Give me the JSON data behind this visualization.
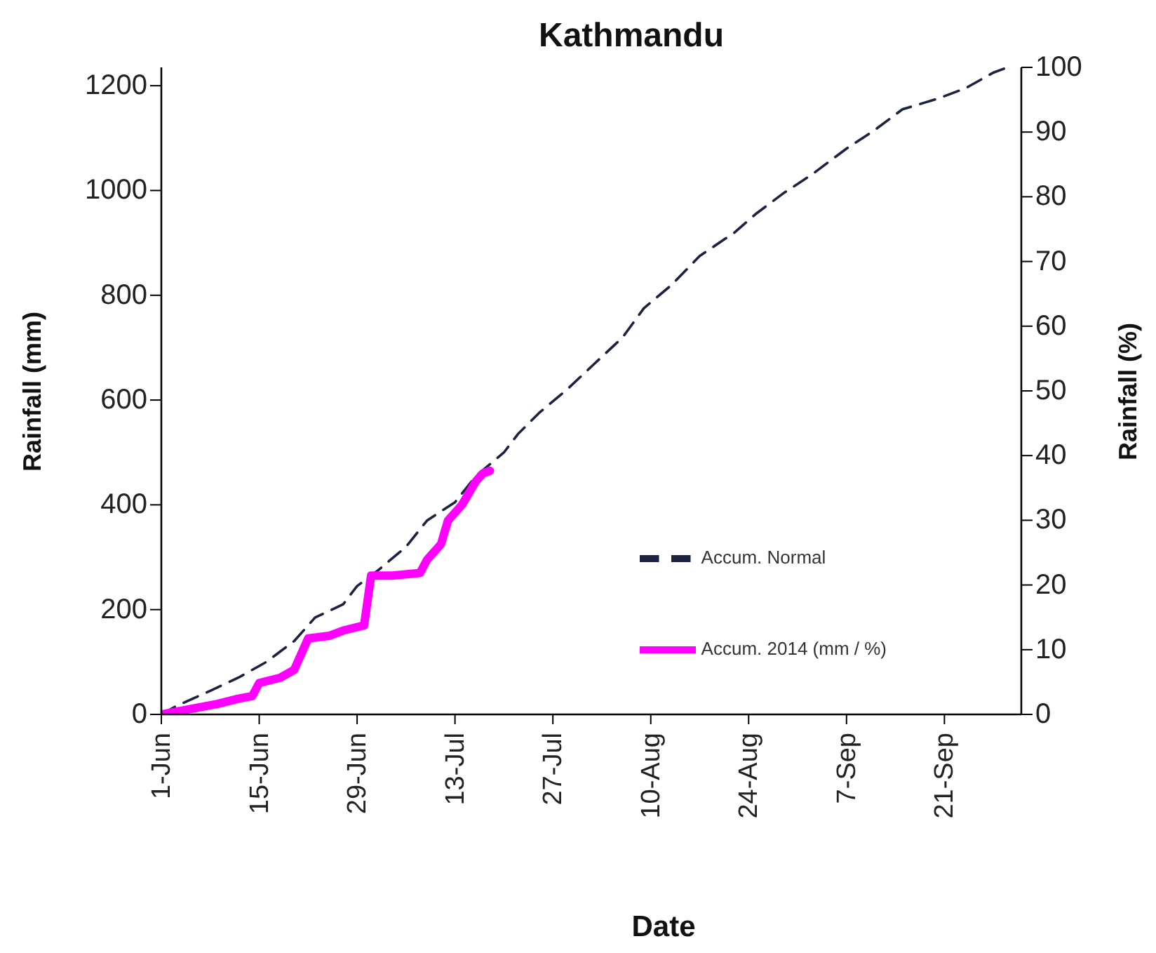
{
  "chart_data": {
    "type": "line",
    "title": "Kathmandu",
    "xlabel": "Date",
    "ylabel": "Rainfall (mm)",
    "y2label": "Rainfall (%)",
    "xlim": [
      "--06-01",
      "--10-02"
    ],
    "xticks": [
      {
        "value": "--06-01",
        "label": "1-Jun"
      },
      {
        "value": "--06-15",
        "label": "15-Jun"
      },
      {
        "value": "--06-29",
        "label": "29-Jun"
      },
      {
        "value": "--07-13",
        "label": "13-Jul"
      },
      {
        "value": "--07-27",
        "label": "27-Jul"
      },
      {
        "value": "--08-10",
        "label": "10-Aug"
      },
      {
        "value": "--08-24",
        "label": "24-Aug"
      },
      {
        "value": "--09-07",
        "label": "7-Sep"
      },
      {
        "value": "--09-21",
        "label": "21-Sep"
      }
    ],
    "ylim": [
      0,
      1235
    ],
    "yticks": [
      0,
      200,
      400,
      600,
      800,
      1000,
      1200
    ],
    "y2lim": [
      0,
      100
    ],
    "y2ticks": [
      0,
      10,
      20,
      30,
      40,
      50,
      60,
      70,
      80,
      90,
      100
    ],
    "legend": "bottom right",
    "marker": "none",
    "series": [
      {
        "name": "Accum. Normal",
        "color": "#1c2340",
        "line_style": "dashed",
        "x": [
          "--06-01",
          "--06-03",
          "--06-08",
          "--06-12",
          "--06-16",
          "--06-20",
          "--06-23",
          "--06-27",
          "--06-29",
          "--07-02",
          "--07-06",
          "--07-09",
          "--07-13",
          "--07-16",
          "--07-20",
          "--07-22",
          "--07-25",
          "--07-29",
          "--08-02",
          "--08-06",
          "--08-09",
          "--08-13",
          "--08-17",
          "--08-22",
          "--08-25",
          "--08-29",
          "--09-02",
          "--09-07",
          "--09-11",
          "--09-15",
          "--09-20",
          "--09-24",
          "--09-28",
          "--09-30"
        ],
        "values": [
          0,
          15,
          45,
          70,
          100,
          140,
          185,
          210,
          245,
          275,
          320,
          370,
          405,
          455,
          500,
          535,
          575,
          620,
          670,
          720,
          775,
          820,
          875,
          920,
          955,
          995,
          1030,
          1080,
          1115,
          1155,
          1175,
          1195,
          1225,
          1235
        ]
      },
      {
        "name": "Accum. 2014 (mm / %)",
        "color": "#ff00ff",
        "line_style": "solid",
        "x": [
          "--06-01",
          "--06-05",
          "--06-09",
          "--06-12",
          "--06-14",
          "--06-15",
          "--06-18",
          "--06-20",
          "--06-22",
          "--06-25",
          "--06-27",
          "--06-30",
          "--07-01",
          "--07-04",
          "--07-08",
          "--07-09",
          "--07-11",
          "--07-12",
          "--07-14",
          "--07-16",
          "--07-17",
          "--07-18"
        ],
        "values": [
          0,
          10,
          20,
          30,
          35,
          60,
          70,
          85,
          145,
          150,
          160,
          170,
          265,
          265,
          270,
          295,
          325,
          370,
          400,
          445,
          460,
          465
        ]
      }
    ]
  }
}
